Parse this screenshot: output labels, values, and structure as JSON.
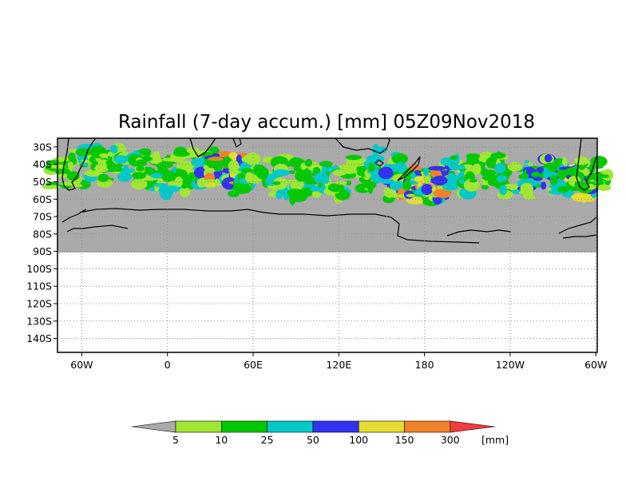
{
  "title": "Rainfall (7-day accum.) [mm] 05Z09Nov2018",
  "y_axis": {
    "labels": [
      "30S",
      "40S",
      "50S",
      "60S",
      "70S",
      "80S",
      "90S",
      "100S",
      "110S",
      "120S",
      "130S",
      "140S"
    ],
    "values": [
      -30,
      -40,
      -50,
      -60,
      -70,
      -80,
      -90,
      -100,
      -110,
      -120,
      -130,
      -140
    ],
    "range": [
      -25,
      -148
    ]
  },
  "x_axis": {
    "labels": [
      "60W",
      "0",
      "60E",
      "120E",
      "180",
      "120W",
      "60W"
    ],
    "lon_values": [
      -60,
      0,
      60,
      120,
      180,
      240,
      300
    ],
    "range": [
      -77,
      301
    ]
  },
  "grid": true,
  "colors": {
    "no_data": "#aaaaaa",
    "land_outline": "#000000",
    "background": "#ffffff"
  },
  "colorbar": {
    "unit": "[mm]",
    "thresholds": [
      "5",
      "10",
      "25",
      "50",
      "100",
      "150",
      "300"
    ],
    "colors": [
      "#aaaaaa",
      "#a0e632",
      "#00c800",
      "#00c8c8",
      "#3232f0",
      "#e6dc32",
      "#f08228",
      "#f03c3c"
    ]
  },
  "rain_bands": [
    {
      "lon": -70,
      "lat": -45,
      "level": 2
    },
    {
      "lon": -55,
      "lat": -38,
      "level": 3
    },
    {
      "lon": -40,
      "lat": -42,
      "level": 2
    },
    {
      "lon": -25,
      "lat": -40,
      "level": 3
    },
    {
      "lon": -10,
      "lat": -45,
      "level": 2
    },
    {
      "lon": 5,
      "lat": -48,
      "level": 3
    },
    {
      "lon": 20,
      "lat": -42,
      "level": 2
    },
    {
      "lon": 35,
      "lat": -45,
      "level": 4
    },
    {
      "lon": 42,
      "lat": -43,
      "level": 6
    },
    {
      "lon": 55,
      "lat": -48,
      "level": 3
    },
    {
      "lon": 70,
      "lat": -45,
      "level": 2
    },
    {
      "lon": 85,
      "lat": -52,
      "level": 3
    },
    {
      "lon": 100,
      "lat": -48,
      "level": 2
    },
    {
      "lon": 115,
      "lat": -50,
      "level": 3
    },
    {
      "lon": 130,
      "lat": -45,
      "level": 2
    },
    {
      "lon": 150,
      "lat": -40,
      "level": 3
    },
    {
      "lon": 165,
      "lat": -52,
      "level": 4
    },
    {
      "lon": 172,
      "lat": -50,
      "level": 6
    },
    {
      "lon": 180,
      "lat": -53,
      "level": 5
    },
    {
      "lon": 190,
      "lat": -50,
      "level": 4
    },
    {
      "lon": 198,
      "lat": -48,
      "level": 6
    },
    {
      "lon": 210,
      "lat": -45,
      "level": 3
    },
    {
      "lon": 225,
      "lat": -42,
      "level": 2
    },
    {
      "lon": 245,
      "lat": -50,
      "level": 3
    },
    {
      "lon": 260,
      "lat": -45,
      "level": 4
    },
    {
      "lon": 275,
      "lat": -48,
      "level": 3
    },
    {
      "lon": 290,
      "lat": -50,
      "level": 5
    },
    {
      "lon": 296,
      "lat": -45,
      "level": 2
    }
  ]
}
